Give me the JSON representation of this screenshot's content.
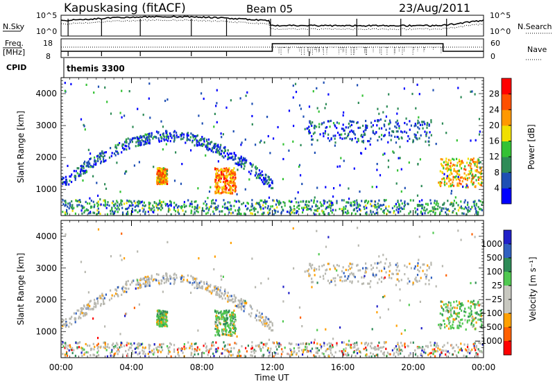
{
  "header": {
    "station": "Kapuskasing (fitACF)",
    "beam": "Beam 05",
    "date": "23/Aug/2011"
  },
  "top_panel": {
    "left_label": "N.Sky",
    "left_ticks": [
      "10^5",
      "10^0"
    ],
    "right_ticks": [
      "10^5",
      "10^0"
    ],
    "right_label": "N.Search",
    "right_line_style": "dotted"
  },
  "freq_panel": {
    "left_label_1": "Freq.",
    "left_label_2": "[MHz]",
    "left_ticks": [
      "18",
      "8"
    ],
    "right_ticks": [
      "60",
      "0"
    ],
    "right_label": "Nave",
    "right_line_style": "dotted",
    "cpid_label": "CPID",
    "cpid_value": "themis 3300"
  },
  "colors": {
    "power_scale": [
      "#0000ff",
      "#1e4fb4",
      "#2e8b57",
      "#34c234",
      "#f0e000",
      "#ff9800",
      "#ff5000",
      "#ff0000"
    ],
    "velocity_scale": [
      "#2020c8",
      "#3060c0",
      "#2e8b57",
      "#50c850",
      "#c8c8c0",
      "#c8c8c0",
      "#ffa000",
      "#ff6000",
      "#ff0000"
    ],
    "ground_scatter": "#b8b8b0"
  },
  "chart_data": [
    {
      "type": "heatmap",
      "title": "Power",
      "xlabel": "",
      "ylabel": "Slant Range [km]",
      "xlim": [
        "00:00",
        "24:00"
      ],
      "ylim": [
        180,
        4500
      ],
      "y_ticks": [
        "1000",
        "2000",
        "3000",
        "4000"
      ],
      "colorbar": {
        "label": "Power [dB]",
        "ticks": [
          "4",
          "8",
          "12",
          "16",
          "20",
          "24",
          "28"
        ],
        "range": [
          0,
          32
        ]
      },
      "features": [
        {
          "start": 0.0,
          "end": 24.0,
          "range": [
            200,
            700
          ],
          "value": 10
        },
        {
          "start": 0.0,
          "end": 12.0,
          "arc_peak_range": 2700,
          "value": 6
        },
        {
          "start": 5.4,
          "end": 6.0,
          "range": [
            1200,
            1700
          ],
          "value": 22
        },
        {
          "start": 8.7,
          "end": 9.9,
          "range": [
            900,
            1700
          ],
          "value": 24
        },
        {
          "start": 13.8,
          "end": 21.0,
          "range": [
            2500,
            3200
          ],
          "value": 6
        },
        {
          "start": 21.4,
          "end": 24.0,
          "range": [
            1100,
            2000
          ],
          "value": 20
        }
      ]
    },
    {
      "type": "heatmap",
      "title": "Velocity",
      "xlabel": "Time UT",
      "ylabel": "Slant Range [km]",
      "xlim": [
        "00:00",
        "24:00"
      ],
      "ylim": [
        180,
        4500
      ],
      "x_ticks": [
        "00:00",
        "04:00",
        "08:00",
        "12:00",
        "16:00",
        "20:00",
        "00:00"
      ],
      "y_ticks": [
        "1000",
        "2000",
        "3000",
        "4000"
      ],
      "colorbar": {
        "label": "Velocity [m s⁻¹]",
        "ticks": [
          "1000",
          "500",
          "100",
          "25",
          "−25",
          "−100",
          "−500",
          "−1000"
        ]
      }
    }
  ]
}
